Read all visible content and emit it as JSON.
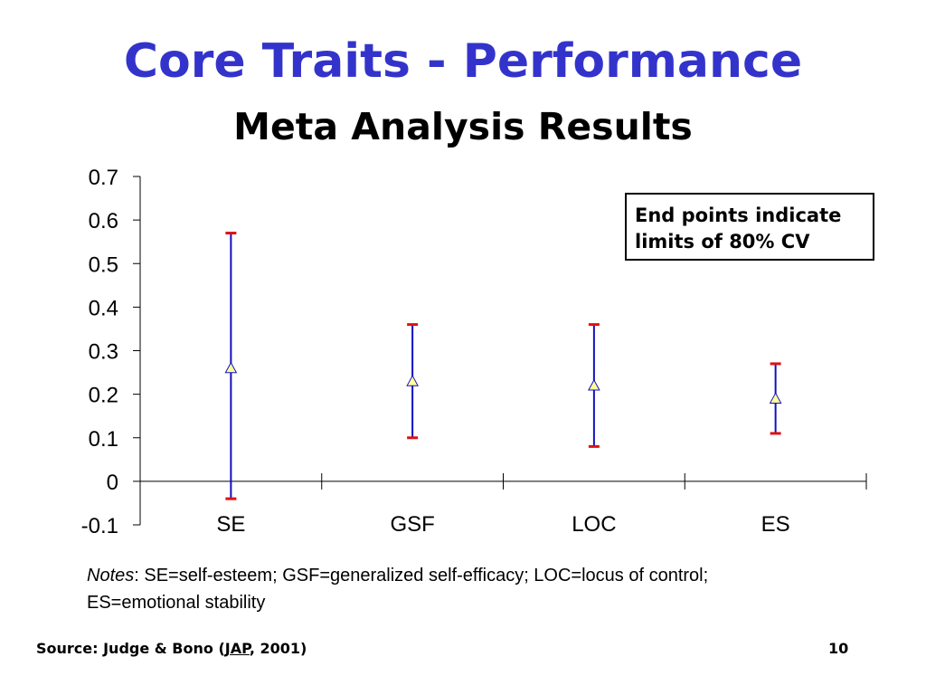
{
  "slide": {
    "title": "Core Traits - Performance",
    "subtitle": "Meta Analysis Results",
    "note_box": {
      "line1": "End points indicate",
      "line2": "limits of 80% CV"
    },
    "notes": {
      "label": "Notes",
      "text": ": SE=self-esteem; GSF=generalized self-efficacy; LOC=locus of control;",
      "text2": "ES=emotional stability"
    },
    "source": {
      "prefix": "Source: Judge & Bono (",
      "journal": "JAP",
      "suffix": ", 2001)"
    },
    "page_number": "10"
  },
  "chart_data": {
    "type": "scatter",
    "title": "",
    "xlabel": "",
    "ylabel": "",
    "categories": [
      "SE",
      "GSF",
      "LOC",
      "ES"
    ],
    "ylim": [
      -0.1,
      0.7
    ],
    "yticks": [
      0.7,
      0.6,
      0.5,
      0.4,
      0.3,
      0.2,
      0.1,
      0,
      -0.1
    ],
    "ytick_labels": [
      "0.7",
      "0.6",
      "0.5",
      "0.4",
      "0.3",
      "0.2",
      "0.1",
      "0",
      "-0.1"
    ],
    "series": [
      {
        "values": [
          0.26,
          0.23,
          0.22,
          0.19
        ],
        "lower": [
          -0.04,
          0.1,
          0.08,
          0.11
        ],
        "upper": [
          0.57,
          0.36,
          0.36,
          0.27
        ]
      }
    ],
    "colors": {
      "error_bar": "#1010c0",
      "cap": "#dd1111",
      "marker_fill": "#ffff99",
      "marker_stroke": "#1010c0",
      "axis": "#000000"
    },
    "grid": false,
    "marker": "triangle"
  }
}
